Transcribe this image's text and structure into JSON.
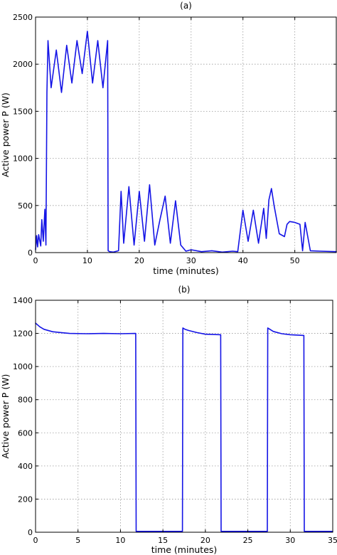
{
  "chart_data": [
    {
      "type": "line",
      "title": "(a)",
      "xlabel": "time (minutes)",
      "ylabel": "Active power P (W)",
      "xlim": [
        0,
        58
      ],
      "ylim": [
        0,
        2500
      ],
      "xticks": [
        0,
        10,
        20,
        30,
        40,
        50
      ],
      "yticks": [
        0,
        500,
        1000,
        1500,
        2000,
        2500
      ],
      "grid": true,
      "series_color": "#1414e6",
      "series": [
        {
          "x": [
            0,
            0.2,
            0.4,
            0.6,
            1.0,
            1.2,
            1.5,
            1.8,
            2.0,
            2.2,
            2.4,
            3,
            4,
            5,
            6,
            7,
            8,
            9,
            10,
            11,
            12,
            13,
            13.9,
            14.0,
            14.3,
            15,
            16,
            16.5,
            17,
            18,
            19,
            20,
            21,
            22,
            23,
            24,
            25,
            26,
            27,
            28,
            29,
            30,
            32,
            34,
            36,
            38,
            39,
            40,
            41,
            42,
            43,
            44,
            44.5,
            45,
            45.5,
            46,
            47,
            48,
            48.5,
            49,
            50,
            51,
            51.5,
            52,
            53,
            55,
            58
          ],
          "y": [
            30,
            180,
            60,
            190,
            70,
            350,
            120,
            460,
            80,
            1700,
            2250,
            1750,
            2150,
            1700,
            2200,
            1800,
            2250,
            1900,
            2350,
            1800,
            2250,
            1750,
            2250,
            20,
            10,
            5,
            20,
            650,
            100,
            700,
            80,
            650,
            120,
            720,
            80,
            350,
            600,
            100,
            550,
            80,
            15,
            30,
            10,
            20,
            5,
            15,
            10,
            450,
            120,
            450,
            100,
            470,
            150,
            560,
            680,
            500,
            200,
            170,
            300,
            330,
            320,
            300,
            20,
            320,
            20,
            15,
            10
          ]
        }
      ]
    },
    {
      "type": "line",
      "title": "(b)",
      "xlabel": "time (minutes)",
      "ylabel": "Active power P (W)",
      "xlim": [
        0,
        35
      ],
      "ylim": [
        0,
        1400
      ],
      "xticks": [
        0,
        5,
        10,
        15,
        20,
        25,
        30,
        35
      ],
      "yticks": [
        0,
        200,
        400,
        600,
        800,
        1000,
        1200,
        1400
      ],
      "grid": true,
      "series_color": "#1414e6",
      "series": [
        {
          "x": [
            0,
            0.5,
            1,
            2,
            3,
            4,
            6,
            8,
            10,
            11.8,
            11.85,
            17.3,
            17.35,
            17.6,
            18,
            19,
            20,
            21.8,
            21.85,
            27.3,
            27.35,
            27.6,
            28,
            29,
            30,
            31.6,
            31.65,
            35
          ],
          "y": [
            1262,
            1240,
            1225,
            1210,
            1205,
            1200,
            1198,
            1200,
            1198,
            1200,
            5,
            5,
            1233,
            1225,
            1218,
            1205,
            1195,
            1192,
            5,
            5,
            1233,
            1225,
            1212,
            1198,
            1192,
            1188,
            5,
            5
          ]
        }
      ]
    }
  ]
}
